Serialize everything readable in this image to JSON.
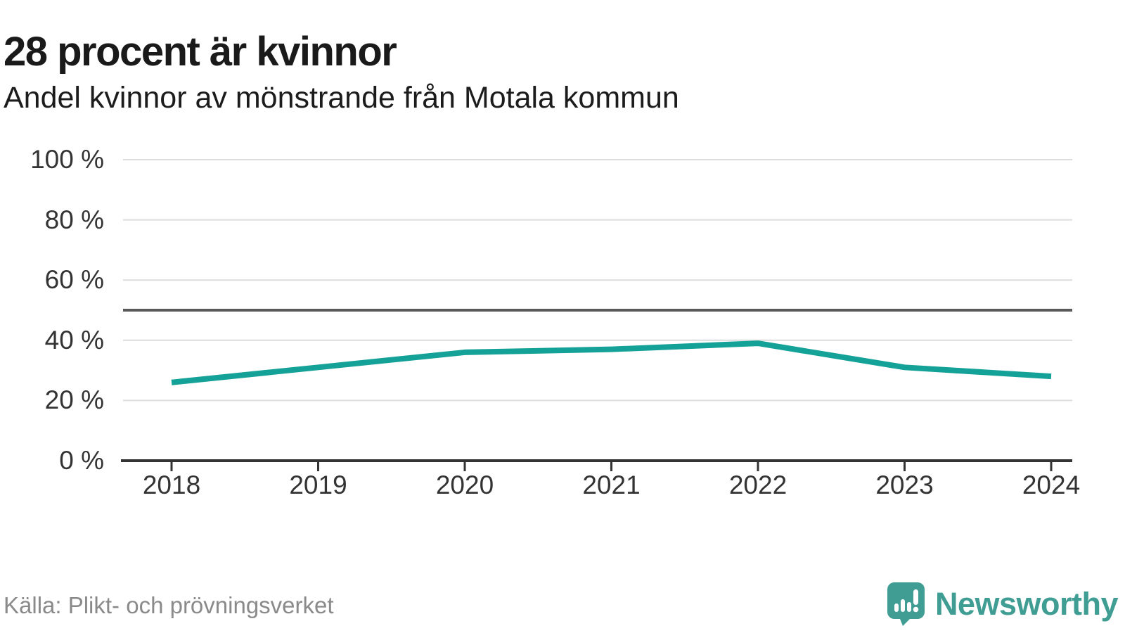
{
  "header": {
    "title": "28 procent är kvinnor",
    "subtitle": "Andel kvinnor av mönstrande från Motala kommun"
  },
  "footer": {
    "source": "Källa: Plikt- och prövningsverket",
    "brand": "Newsworthy"
  },
  "colors": {
    "line": "#14a298",
    "reference_line": "#595959",
    "gridline": "#dcdcdc",
    "axis": "#333333",
    "tick_text": "#333333",
    "muted_text": "#8a8a8a",
    "brand": "#3f9d93",
    "background": "#ffffff"
  },
  "chart_data": {
    "type": "line",
    "title": "28 procent är kvinnor",
    "subtitle": "Andel kvinnor av mönstrande från Motala kommun",
    "categories": [
      "2018",
      "2019",
      "2020",
      "2021",
      "2022",
      "2023",
      "2024"
    ],
    "series": [
      {
        "name": "Andel kvinnor av mönstrande",
        "color": "#14a298",
        "values": [
          26,
          31,
          36,
          37,
          39,
          31,
          28
        ]
      }
    ],
    "xlabel": "",
    "ylabel": "",
    "ylim": [
      0,
      100
    ],
    "yticks": [
      0,
      20,
      40,
      60,
      80,
      100
    ],
    "ytick_labels": [
      "0 %",
      "20 %",
      "40 %",
      "60 %",
      "80 %",
      "100 %"
    ],
    "reference_line": 50,
    "grid": "horizontal",
    "legend": "none",
    "source": "Källa: Plikt- och prövningsverket"
  }
}
